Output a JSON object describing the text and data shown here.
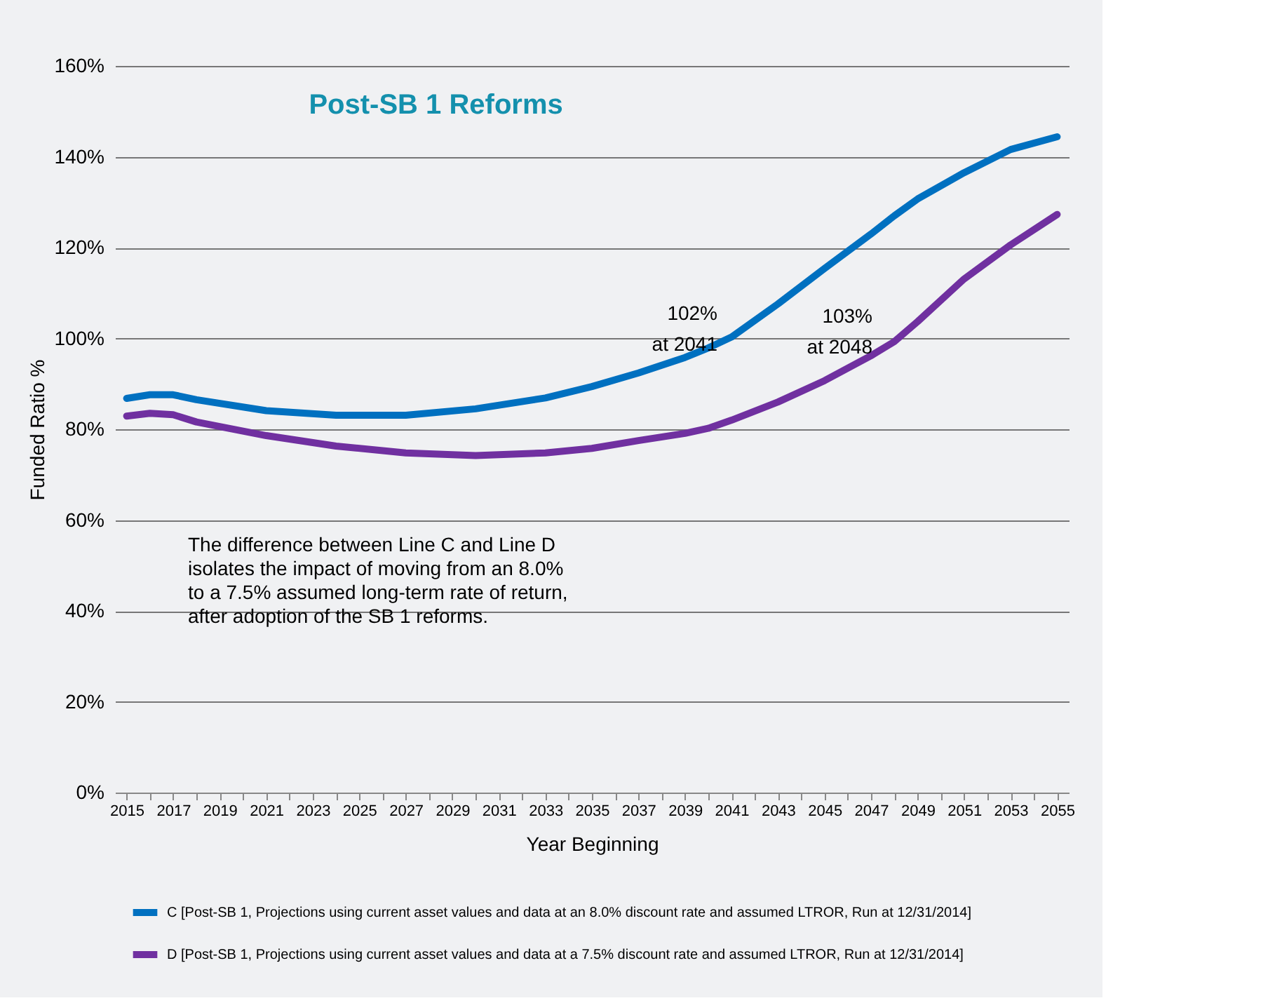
{
  "chart_data": {
    "type": "line",
    "title": "Post-SB 1 Reforms",
    "xlabel": "Year Beginning",
    "ylabel": "Funded Ratio %",
    "x": [
      2015,
      2016,
      2017,
      2018,
      2021,
      2024,
      2027,
      2030,
      2033,
      2035,
      2037,
      2039,
      2040,
      2041,
      2043,
      2045,
      2047,
      2048,
      2049,
      2051,
      2053,
      2055
    ],
    "series": [
      {
        "name": "C  [Post-SB 1, Projections using current asset values and data at an 8.0% discount rate and assumed LTROR, Run at 12/31/2014]",
        "color": "#0070c0",
        "values": [
          86.8,
          87.6,
          87.6,
          86.5,
          84.1,
          83.1,
          83.1,
          84.5,
          86.9,
          89.4,
          92.4,
          95.8,
          97.9,
          100.3,
          107.6,
          115.4,
          123,
          127,
          130.7,
          136.5,
          141.6,
          144.4
        ]
      },
      {
        "name": "D  [Post-SB 1, Projections using current asset values and data at a 7.5% discount rate and assumed LTROR, Run at 12/31/2014]",
        "color": "#7030a0",
        "values": [
          82.9,
          83.5,
          83.2,
          81.6,
          78.6,
          76.3,
          74.8,
          74.2,
          74.8,
          75.8,
          77.5,
          79.1,
          80.2,
          82,
          86,
          90.7,
          96.2,
          99.3,
          103.7,
          113.1,
          120.6,
          127.3
        ]
      }
    ],
    "xlim": [
      2014.5,
      2055.5
    ],
    "xticks": [
      2015,
      {
        "value": 2016,
        "label": null
      },
      2017,
      {
        "value": 2018,
        "label": null
      },
      2019,
      {
        "value": 2020,
        "label": null
      },
      2021,
      {
        "value": 2022,
        "label": null
      },
      2023,
      {
        "value": 2024,
        "label": null
      },
      2025,
      {
        "value": 2026,
        "label": null
      },
      2027,
      {
        "value": 2028,
        "label": null
      },
      2029,
      {
        "value": 2030,
        "label": null
      },
      2031,
      {
        "value": 2032,
        "label": null
      },
      2033,
      {
        "value": 2034,
        "label": null
      },
      2035,
      {
        "value": 2036,
        "label": null
      },
      2037,
      {
        "value": 2038,
        "label": null
      },
      2039,
      {
        "value": 2040,
        "label": null
      },
      2041,
      {
        "value": 2042,
        "label": null
      },
      2043,
      {
        "value": 2044,
        "label": null
      },
      2045,
      {
        "value": 2046,
        "label": null
      },
      2047,
      {
        "value": 2048,
        "label": null
      },
      2049,
      {
        "value": 2050,
        "label": null
      },
      2051,
      {
        "value": 2052,
        "label": null
      },
      2053,
      {
        "value": 2054,
        "label": null
      },
      2055
    ],
    "ylim": [
      0,
      160
    ],
    "yticks": [
      {
        "value": 0,
        "label": "0%"
      },
      {
        "value": 20,
        "label": "20%"
      },
      {
        "value": 40,
        "label": "40%"
      },
      {
        "value": 60,
        "label": "60%"
      },
      {
        "value": 80,
        "label": "80%"
      },
      {
        "value": 100,
        "label": "100%"
      },
      {
        "value": 120,
        "label": "120%"
      },
      {
        "value": 140,
        "label": "140%"
      },
      {
        "value": 160,
        "label": "160%"
      }
    ],
    "annotations": [
      {
        "text": "102%\nat 2041",
        "x": 2041,
        "y": 102
      },
      "103%\nat 2048",
      "The difference between Line C and Line D\nisolates the impact of moving from an 8.0%\nto a 7.5% assumed long-term rate of return,\nafter adoption of the SB 1 reforms."
    ],
    "grid": "y",
    "legend": "bottom",
    "marker": "none",
    "line_style": "solid"
  }
}
